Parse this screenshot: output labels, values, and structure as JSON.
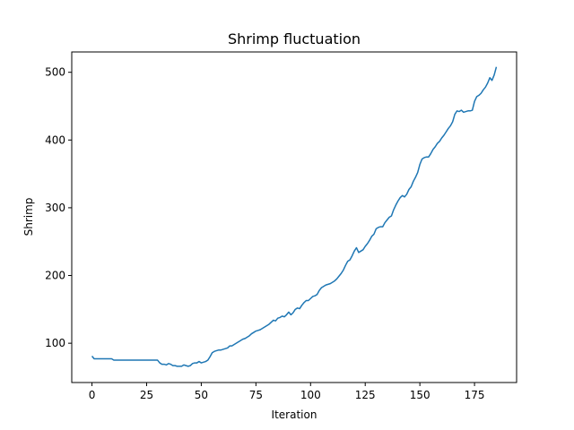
{
  "chart_data": {
    "type": "line",
    "title": "Shrimp fluctuation",
    "xlabel": "Iteration",
    "ylabel": "Shrimp",
    "xlim": [
      -9.25,
      194.25
    ],
    "ylim": [
      42,
      530
    ],
    "xticks": [
      0,
      25,
      50,
      75,
      100,
      125,
      150,
      175
    ],
    "yticks": [
      100,
      200,
      300,
      400,
      500
    ],
    "grid": false,
    "series": [
      {
        "color": "#1f77b4",
        "points": [
          [
            0,
            81
          ],
          [
            1,
            77
          ],
          [
            2,
            77
          ],
          [
            3,
            77
          ],
          [
            4,
            77
          ],
          [
            5,
            77
          ],
          [
            6,
            77
          ],
          [
            7,
            77
          ],
          [
            8,
            77
          ],
          [
            9,
            77
          ],
          [
            10,
            75
          ],
          [
            11,
            75
          ],
          [
            12,
            75
          ],
          [
            13,
            75
          ],
          [
            14,
            75
          ],
          [
            15,
            75
          ],
          [
            16,
            75
          ],
          [
            17,
            75
          ],
          [
            18,
            75
          ],
          [
            19,
            75
          ],
          [
            20,
            75
          ],
          [
            21,
            75
          ],
          [
            22,
            75
          ],
          [
            23,
            75
          ],
          [
            24,
            75
          ],
          [
            25,
            75
          ],
          [
            26,
            75
          ],
          [
            27,
            75
          ],
          [
            28,
            75
          ],
          [
            29,
            75
          ],
          [
            30,
            75
          ],
          [
            31,
            71
          ],
          [
            32,
            69
          ],
          [
            33,
            69
          ],
          [
            34,
            68
          ],
          [
            35,
            70
          ],
          [
            36,
            69
          ],
          [
            37,
            67
          ],
          [
            38,
            67
          ],
          [
            39,
            66
          ],
          [
            40,
            66
          ],
          [
            41,
            66
          ],
          [
            42,
            68
          ],
          [
            43,
            67
          ],
          [
            44,
            66
          ],
          [
            45,
            67
          ],
          [
            46,
            70
          ],
          [
            47,
            71
          ],
          [
            48,
            71
          ],
          [
            49,
            73
          ],
          [
            50,
            71
          ],
          [
            51,
            72
          ],
          [
            52,
            73
          ],
          [
            53,
            75
          ],
          [
            54,
            80
          ],
          [
            55,
            86
          ],
          [
            56,
            88
          ],
          [
            57,
            89
          ],
          [
            58,
            90
          ],
          [
            59,
            90
          ],
          [
            60,
            91
          ],
          [
            61,
            92
          ],
          [
            62,
            93
          ],
          [
            63,
            96
          ],
          [
            64,
            96
          ],
          [
            65,
            98
          ],
          [
            66,
            100
          ],
          [
            67,
            102
          ],
          [
            68,
            104
          ],
          [
            69,
            106
          ],
          [
            70,
            107
          ],
          [
            71,
            109
          ],
          [
            72,
            111
          ],
          [
            73,
            114
          ],
          [
            74,
            116
          ],
          [
            75,
            118
          ],
          [
            76,
            119
          ],
          [
            77,
            120
          ],
          [
            78,
            122
          ],
          [
            79,
            124
          ],
          [
            80,
            126
          ],
          [
            81,
            128
          ],
          [
            82,
            131
          ],
          [
            83,
            134
          ],
          [
            84,
            133
          ],
          [
            85,
            137
          ],
          [
            86,
            138
          ],
          [
            87,
            140
          ],
          [
            88,
            139
          ],
          [
            89,
            142
          ],
          [
            90,
            146
          ],
          [
            91,
            142
          ],
          [
            92,
            145
          ],
          [
            93,
            150
          ],
          [
            94,
            152
          ],
          [
            95,
            151
          ],
          [
            96,
            156
          ],
          [
            97,
            160
          ],
          [
            98,
            163
          ],
          [
            99,
            163
          ],
          [
            100,
            166
          ],
          [
            101,
            169
          ],
          [
            102,
            170
          ],
          [
            103,
            172
          ],
          [
            104,
            178
          ],
          [
            105,
            182
          ],
          [
            106,
            184
          ],
          [
            107,
            186
          ],
          [
            108,
            187
          ],
          [
            109,
            188
          ],
          [
            110,
            190
          ],
          [
            111,
            192
          ],
          [
            112,
            195
          ],
          [
            113,
            199
          ],
          [
            114,
            203
          ],
          [
            115,
            208
          ],
          [
            116,
            215
          ],
          [
            117,
            221
          ],
          [
            118,
            223
          ],
          [
            119,
            229
          ],
          [
            120,
            236
          ],
          [
            121,
            241
          ],
          [
            122,
            234
          ],
          [
            123,
            236
          ],
          [
            124,
            238
          ],
          [
            125,
            243
          ],
          [
            126,
            247
          ],
          [
            127,
            252
          ],
          [
            128,
            258
          ],
          [
            129,
            261
          ],
          [
            130,
            269
          ],
          [
            131,
            271
          ],
          [
            132,
            272
          ],
          [
            133,
            272
          ],
          [
            134,
            278
          ],
          [
            135,
            282
          ],
          [
            136,
            286
          ],
          [
            137,
            288
          ],
          [
            138,
            297
          ],
          [
            139,
            304
          ],
          [
            140,
            310
          ],
          [
            141,
            315
          ],
          [
            142,
            318
          ],
          [
            143,
            316
          ],
          [
            144,
            320
          ],
          [
            145,
            327
          ],
          [
            146,
            331
          ],
          [
            147,
            339
          ],
          [
            148,
            345
          ],
          [
            149,
            352
          ],
          [
            150,
            364
          ],
          [
            151,
            372
          ],
          [
            152,
            374
          ],
          [
            153,
            375
          ],
          [
            154,
            375
          ],
          [
            155,
            380
          ],
          [
            156,
            386
          ],
          [
            157,
            390
          ],
          [
            158,
            395
          ],
          [
            159,
            398
          ],
          [
            160,
            403
          ],
          [
            161,
            407
          ],
          [
            162,
            412
          ],
          [
            163,
            417
          ],
          [
            164,
            421
          ],
          [
            165,
            427
          ],
          [
            166,
            438
          ],
          [
            167,
            443
          ],
          [
            168,
            442
          ],
          [
            169,
            444
          ],
          [
            170,
            441
          ],
          [
            171,
            442
          ],
          [
            172,
            443
          ],
          [
            173,
            443
          ],
          [
            174,
            444
          ],
          [
            175,
            457
          ],
          [
            176,
            464
          ],
          [
            177,
            466
          ],
          [
            178,
            469
          ],
          [
            179,
            474
          ],
          [
            180,
            478
          ],
          [
            181,
            484
          ],
          [
            182,
            492
          ],
          [
            183,
            488
          ],
          [
            184,
            496
          ],
          [
            185,
            508
          ]
        ]
      }
    ]
  }
}
